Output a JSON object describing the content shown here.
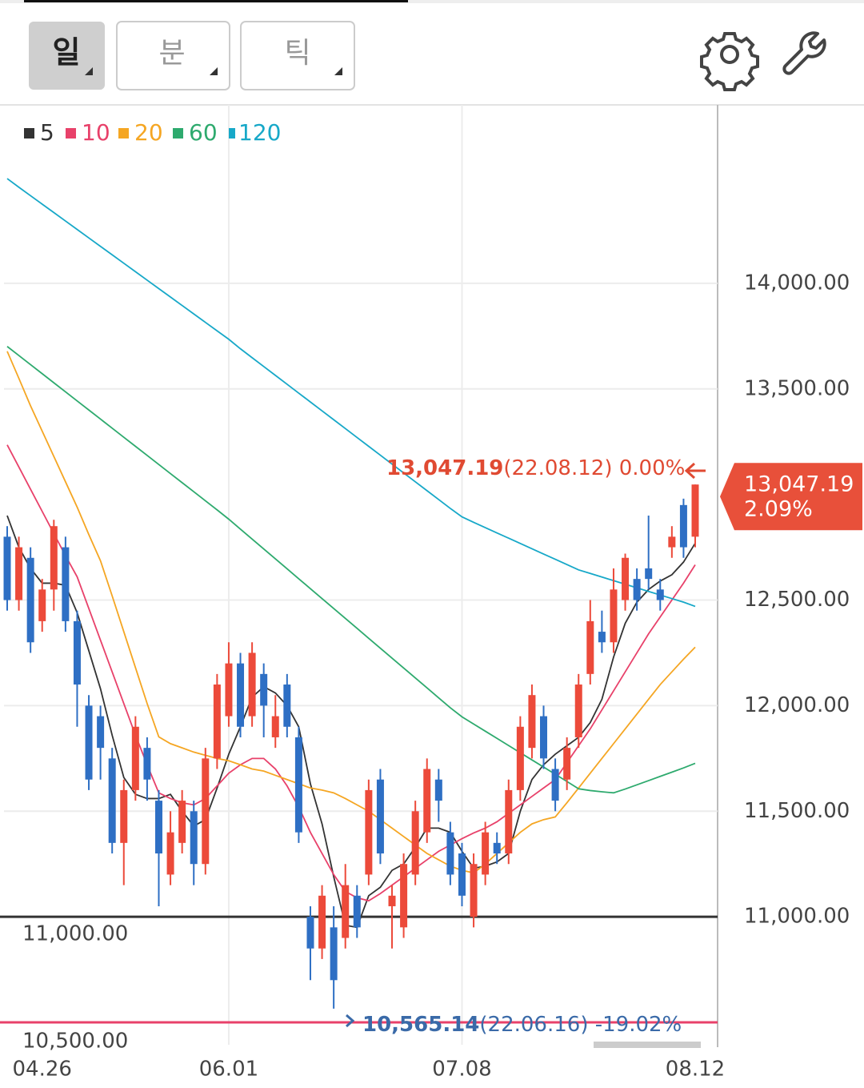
{
  "toolbar": {
    "tabs": [
      "일",
      "분",
      "틱"
    ]
  },
  "chart_data": {
    "type": "candlestick",
    "categories": [
      null,
      null,
      null,
      "04.26",
      null,
      null,
      null,
      null,
      null,
      null,
      null,
      null,
      null,
      null,
      null,
      null,
      null,
      null,
      null,
      "06.01",
      null,
      null,
      null,
      null,
      null,
      null,
      null,
      null,
      null,
      null,
      null,
      null,
      null,
      null,
      null,
      null,
      null,
      null,
      null,
      "07.08",
      null,
      null,
      null,
      null,
      null,
      null,
      null,
      null,
      null,
      null,
      null,
      null,
      null,
      null,
      null,
      null,
      null,
      null,
      null,
      "08.12"
    ],
    "open": [
      12800,
      12500,
      12700,
      12400,
      12550,
      12750,
      12400,
      12000,
      11950,
      11750,
      11350,
      11600,
      11800,
      11550,
      11200,
      11350,
      11500,
      11250,
      11750,
      11950,
      12200,
      11950,
      12150,
      11850,
      12100,
      11850,
      11000,
      10850,
      10950,
      10900,
      11100,
      11200,
      11650,
      11050,
      10950,
      11200,
      11400,
      11650,
      11400,
      11300,
      11000,
      11200,
      11350,
      11300,
      11600,
      11800,
      11950,
      11700,
      11650,
      11850,
      12150,
      12350,
      12300,
      12500,
      12600,
      12650,
      12550,
      12750,
      12950,
      12800
    ],
    "high": [
      12850,
      12800,
      12750,
      12600,
      12880,
      12800,
      12450,
      12050,
      12000,
      11800,
      11650,
      11950,
      11850,
      11600,
      11500,
      11600,
      11550,
      11800,
      12150,
      12300,
      12250,
      12300,
      12200,
      12050,
      12150,
      11900,
      11050,
      11150,
      11050,
      11250,
      11150,
      11650,
      11700,
      11150,
      11300,
      11550,
      11750,
      11700,
      11450,
      11350,
      11300,
      11450,
      11400,
      11650,
      11950,
      12100,
      12000,
      11750,
      11850,
      12150,
      12500,
      12450,
      12650,
      12720,
      12650,
      12900,
      12600,
      12850,
      12980,
      13047.19
    ],
    "low": [
      12450,
      12450,
      12250,
      12350,
      12450,
      12350,
      11900,
      11600,
      11650,
      11300,
      11150,
      11550,
      11550,
      11050,
      11150,
      11300,
      11150,
      11200,
      11700,
      11900,
      11850,
      11900,
      11850,
      11800,
      11850,
      11350,
      10700,
      10800,
      10565.14,
      10850,
      10900,
      11150,
      11250,
      10850,
      10900,
      11150,
      11350,
      11450,
      11150,
      11050,
      10950,
      11150,
      11250,
      11250,
      11550,
      11750,
      11700,
      11500,
      11600,
      11800,
      12100,
      12250,
      12250,
      12450,
      12450,
      12550,
      12450,
      12700,
      12700,
      12750
    ],
    "close": [
      12500,
      12750,
      12300,
      12550,
      12850,
      12400,
      12100,
      11650,
      11800,
      11350,
      11600,
      11900,
      11650,
      11300,
      11400,
      11550,
      11250,
      11750,
      12100,
      12200,
      11900,
      12250,
      12000,
      11950,
      11900,
      11400,
      10850,
      11100,
      10700,
      11150,
      10950,
      11600,
      11300,
      11100,
      11250,
      11500,
      11700,
      11550,
      11200,
      11100,
      11250,
      11400,
      11300,
      11600,
      11900,
      12050,
      11750,
      11550,
      11800,
      12100,
      12400,
      12300,
      12550,
      12700,
      12500,
      12600,
      12500,
      12800,
      12750,
      13047.19
    ],
    "up_color": "#ec4a3a",
    "down_color": "#2e6fc4",
    "series": [
      {
        "name": "5",
        "color": "#333333",
        "values": [
          12900,
          12750,
          12650,
          12580,
          12580,
          12570,
          12440,
          12260,
          12080,
          11860,
          11660,
          11580,
          11560,
          11560,
          11580,
          11500,
          11430,
          11460,
          11610,
          11770,
          11900,
          12040,
          12090,
          12060,
          12000,
          11900,
          11630,
          11440,
          11190,
          10960,
          10950,
          11100,
          11140,
          11220,
          11250,
          11330,
          11420,
          11420,
          11400,
          11310,
          11230,
          11240,
          11260,
          11300,
          11500,
          11650,
          11720,
          11770,
          11810,
          11850,
          11920,
          12030,
          12230,
          12390,
          12490,
          12550,
          12590,
          12620,
          12680,
          12769
        ]
      },
      {
        "name": "10",
        "color": "#e8416a",
        "values": [
          13235,
          13130,
          13025,
          12920,
          12815,
          12710,
          12610,
          12460,
          12310,
          12160,
          12010,
          11860,
          11720,
          11587,
          11560,
          11540,
          11530,
          11560,
          11620,
          11680,
          11720,
          11750,
          11750,
          11700,
          11620,
          11520,
          11400,
          11300,
          11200,
          11120,
          11090,
          11076,
          11110,
          11150,
          11190,
          11230,
          11270,
          11310,
          11340,
          11370,
          11397,
          11420,
          11450,
          11490,
          11530,
          11570,
          11610,
          11650,
          11730,
          11810,
          11890,
          11980,
          12070,
          12160,
          12250,
          12340,
          12420,
          12500,
          12580,
          12667
        ]
      },
      {
        "name": "20",
        "color": "#f5a623",
        "values": [
          13678,
          13550,
          13420,
          13300,
          13180,
          13060,
          12940,
          12810,
          12686,
          12520,
          12350,
          12180,
          12010,
          11852,
          11820,
          11800,
          11780,
          11765,
          11750,
          11739,
          11720,
          11700,
          11690,
          11670,
          11650,
          11630,
          11610,
          11600,
          11587,
          11560,
          11530,
          11500,
          11460,
          11420,
          11380,
          11340,
          11300,
          11270,
          11240,
          11220,
          11208,
          11250,
          11300,
          11350,
          11400,
          11440,
          11460,
          11473,
          11540,
          11610,
          11680,
          11750,
          11820,
          11890,
          11960,
          12030,
          12100,
          12160,
          12220,
          12277
        ]
      },
      {
        "name": "60",
        "color": "#2eaa6e",
        "values": [
          13701,
          13658,
          13615,
          13572,
          13529,
          13486,
          13443,
          13400,
          13357,
          13314,
          13271,
          13228,
          13185,
          13142,
          13099,
          13056,
          13013,
          12970,
          12927,
          12883,
          12836,
          12789,
          12742,
          12695,
          12648,
          12601,
          12554,
          12507,
          12460,
          12413,
          12366,
          12319,
          12272,
          12225,
          12178,
          12131,
          12084,
          12037,
          11990,
          11947,
          11913,
          11879,
          11845,
          11811,
          11777,
          11743,
          11709,
          11675,
          11641,
          11606,
          11598,
          11592,
          11587,
          11605,
          11625,
          11645,
          11665,
          11685,
          11705,
          11727
        ]
      },
      {
        "name": "120",
        "color": "#17a8c8",
        "values": [
          14496,
          14455,
          14415,
          14375,
          14335,
          14295,
          14255,
          14215,
          14175,
          14135,
          14095,
          14055,
          14015,
          13975,
          13935,
          13895,
          13855,
          13815,
          13775,
          13735,
          13690,
          13648,
          13606,
          13564,
          13522,
          13480,
          13438,
          13396,
          13354,
          13312,
          13270,
          13228,
          13186,
          13144,
          13102,
          13060,
          13018,
          12976,
          12934,
          12894,
          12868,
          12843,
          12818,
          12793,
          12768,
          12743,
          12718,
          12693,
          12668,
          12643,
          12626,
          12609,
          12592,
          12575,
          12558,
          12541,
          12524,
          12507,
          12490,
          12470
        ]
      }
    ],
    "ylim": [
      10394,
      14845
    ],
    "yticks": [
      {
        "value": 11000,
        "label": "11,000.00"
      },
      {
        "value": 11500,
        "label": "11,500.00"
      },
      {
        "value": 12000,
        "label": "12,000.00"
      },
      {
        "value": 12500,
        "label": "12,500.00"
      },
      {
        "value": 13500,
        "label": "13,500.00"
      },
      {
        "value": 14000,
        "label": "14,000.00"
      }
    ],
    "grid": true,
    "reference_lines": [
      {
        "value": 11000,
        "label": "11,000.00",
        "color": "#333333"
      },
      {
        "value": 10500,
        "label": "10,500.00",
        "color": "#e8416a"
      }
    ],
    "max_annotation": {
      "value": 13047.19,
      "label": "13,047.19",
      "text": "(22.08.12) 0.00%"
    },
    "min_annotation": {
      "value": 10565.14,
      "label": "10,565.14",
      "text": "(22.06.16) -19.02%"
    },
    "last_price": {
      "value": 13047.19,
      "label": "13,047.19",
      "change": "2.09%"
    }
  }
}
